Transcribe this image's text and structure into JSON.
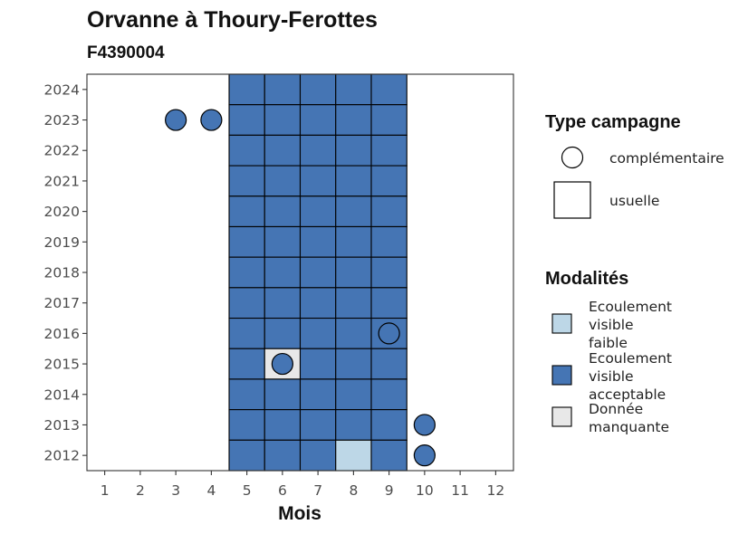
{
  "chart_data": {
    "type": "heatmap",
    "title": "Orvanne à Thoury-Ferottes",
    "subtitle": "F4390004",
    "xlabel": "Mois",
    "ylabel": "",
    "x_ticks": [
      "1",
      "2",
      "3",
      "4",
      "5",
      "6",
      "7",
      "8",
      "9",
      "10",
      "11",
      "12"
    ],
    "y_ticks": [
      "2012",
      "2013",
      "2014",
      "2015",
      "2016",
      "2017",
      "2018",
      "2019",
      "2020",
      "2021",
      "2022",
      "2023",
      "2024"
    ],
    "xlim": [
      0.5,
      12.5
    ],
    "ylim": [
      2011.5,
      2024.5
    ],
    "grid": false,
    "legend_position": "right",
    "shape_legend": {
      "title": "Type campagne",
      "entries": [
        {
          "label": "complémentaire",
          "shape": "circle"
        },
        {
          "label": "usuelle",
          "shape": "square"
        }
      ]
    },
    "fill_legend": {
      "title": "Modalités",
      "entries": [
        {
          "label": "Ecoulement visible faible",
          "lines": [
            "Ecoulement",
            "visible",
            "faible"
          ],
          "color": "#bdd7e7"
        },
        {
          "label": "Ecoulement visible acceptable",
          "lines": [
            "Ecoulement",
            "visible",
            "acceptable"
          ],
          "color": "#4575b4"
        },
        {
          "label": "Donnée manquante",
          "lines": [
            "Donnée",
            "manquante"
          ],
          "color": "#e8e8e8"
        }
      ]
    },
    "usuelle": [
      {
        "year": 2024,
        "values": {
          "5": "Ecoulement visible acceptable",
          "6": "Ecoulement visible acceptable",
          "7": "Ecoulement visible acceptable",
          "8": "Ecoulement visible acceptable",
          "9": "Ecoulement visible acceptable"
        }
      },
      {
        "year": 2023,
        "values": {
          "5": "Ecoulement visible acceptable",
          "6": "Ecoulement visible acceptable",
          "7": "Ecoulement visible acceptable",
          "8": "Ecoulement visible acceptable",
          "9": "Ecoulement visible acceptable"
        }
      },
      {
        "year": 2022,
        "values": {
          "5": "Ecoulement visible acceptable",
          "6": "Ecoulement visible acceptable",
          "7": "Ecoulement visible acceptable",
          "8": "Ecoulement visible acceptable",
          "9": "Ecoulement visible acceptable"
        }
      },
      {
        "year": 2021,
        "values": {
          "5": "Ecoulement visible acceptable",
          "6": "Ecoulement visible acceptable",
          "7": "Ecoulement visible acceptable",
          "8": "Ecoulement visible acceptable",
          "9": "Ecoulement visible acceptable"
        }
      },
      {
        "year": 2020,
        "values": {
          "5": "Ecoulement visible acceptable",
          "6": "Ecoulement visible acceptable",
          "7": "Ecoulement visible acceptable",
          "8": "Ecoulement visible acceptable",
          "9": "Ecoulement visible acceptable"
        }
      },
      {
        "year": 2019,
        "values": {
          "5": "Ecoulement visible acceptable",
          "6": "Ecoulement visible acceptable",
          "7": "Ecoulement visible acceptable",
          "8": "Ecoulement visible acceptable",
          "9": "Ecoulement visible acceptable"
        }
      },
      {
        "year": 2018,
        "values": {
          "5": "Ecoulement visible acceptable",
          "6": "Ecoulement visible acceptable",
          "7": "Ecoulement visible acceptable",
          "8": "Ecoulement visible acceptable",
          "9": "Ecoulement visible acceptable"
        }
      },
      {
        "year": 2017,
        "values": {
          "5": "Ecoulement visible acceptable",
          "6": "Ecoulement visible acceptable",
          "7": "Ecoulement visible acceptable",
          "8": "Ecoulement visible acceptable",
          "9": "Ecoulement visible acceptable"
        }
      },
      {
        "year": 2016,
        "values": {
          "5": "Ecoulement visible acceptable",
          "6": "Ecoulement visible acceptable",
          "7": "Ecoulement visible acceptable",
          "8": "Ecoulement visible acceptable",
          "9": "Ecoulement visible acceptable"
        }
      },
      {
        "year": 2015,
        "values": {
          "5": "Ecoulement visible acceptable",
          "6": "Donnée manquante",
          "7": "Ecoulement visible acceptable",
          "8": "Ecoulement visible acceptable",
          "9": "Ecoulement visible acceptable"
        }
      },
      {
        "year": 2014,
        "values": {
          "5": "Ecoulement visible acceptable",
          "6": "Ecoulement visible acceptable",
          "7": "Ecoulement visible acceptable",
          "8": "Ecoulement visible acceptable",
          "9": "Ecoulement visible acceptable"
        }
      },
      {
        "year": 2013,
        "values": {
          "5": "Ecoulement visible acceptable",
          "6": "Ecoulement visible acceptable",
          "7": "Ecoulement visible acceptable",
          "8": "Ecoulement visible acceptable",
          "9": "Ecoulement visible acceptable"
        }
      },
      {
        "year": 2012,
        "values": {
          "5": "Ecoulement visible acceptable",
          "6": "Ecoulement visible acceptable",
          "7": "Ecoulement visible acceptable",
          "8": "Ecoulement visible faible",
          "9": "Ecoulement visible acceptable"
        }
      }
    ],
    "complementaire": [
      {
        "year": 2023,
        "month": 3,
        "value": "Ecoulement visible acceptable"
      },
      {
        "year": 2023,
        "month": 4,
        "value": "Ecoulement visible acceptable"
      },
      {
        "year": 2016,
        "month": 9,
        "value": "Ecoulement visible acceptable"
      },
      {
        "year": 2015,
        "month": 6,
        "value": "Ecoulement visible acceptable"
      },
      {
        "year": 2013,
        "month": 10,
        "value": "Ecoulement visible acceptable"
      },
      {
        "year": 2012,
        "month": 10,
        "value": "Ecoulement visible acceptable"
      }
    ]
  }
}
